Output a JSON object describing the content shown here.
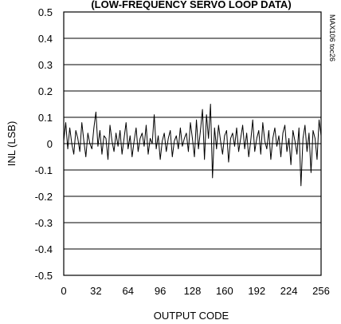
{
  "chart_data": {
    "type": "line",
    "title": "(LOW-FREQUENCY SERVO LOOP DATA)",
    "xlabel": "OUTPUT CODE",
    "ylabel": "INL (LSB)",
    "side_note": "MAX106 toc26",
    "xlim": [
      0,
      256
    ],
    "ylim": [
      -0.5,
      0.5
    ],
    "x_ticks": [
      0,
      32,
      64,
      96,
      128,
      160,
      192,
      224,
      256
    ],
    "y_ticks": [
      0.5,
      0.4,
      0.3,
      0.2,
      0.1,
      0,
      -0.1,
      -0.2,
      -0.3,
      -0.4,
      -0.5
    ],
    "x_tick_labels": [
      "0",
      "32",
      "64",
      "96",
      "128",
      "160",
      "192",
      "224",
      "256"
    ],
    "y_tick_labels": [
      "0.5",
      "0.4",
      "0.3",
      "0.2",
      "0.1",
      "0",
      "-0.1",
      "-0.2",
      "-0.3",
      "-0.4",
      "-0.5"
    ],
    "grid": true,
    "line_color": "#000000",
    "series": [
      {
        "x": [
          0,
          2,
          4,
          6,
          8,
          10,
          12,
          14,
          16,
          18,
          20,
          22,
          24,
          26,
          28,
          30,
          32,
          34,
          36,
          38,
          40,
          42,
          44,
          46,
          48,
          50,
          52,
          54,
          56,
          58,
          60,
          62,
          64,
          66,
          68,
          70,
          72,
          74,
          76,
          78,
          80,
          82,
          84,
          86,
          88,
          90,
          92,
          94,
          96,
          98,
          100,
          102,
          104,
          106,
          108,
          110,
          112,
          114,
          116,
          118,
          120,
          122,
          124,
          126,
          128,
          130,
          132,
          134,
          136,
          138,
          140,
          142,
          144,
          146,
          148,
          150,
          152,
          154,
          156,
          158,
          160,
          162,
          164,
          166,
          168,
          170,
          172,
          174,
          176,
          178,
          180,
          182,
          184,
          186,
          188,
          190,
          192,
          194,
          196,
          198,
          200,
          202,
          204,
          206,
          208,
          210,
          212,
          214,
          216,
          218,
          220,
          222,
          224,
          226,
          228,
          230,
          232,
          234,
          236,
          238,
          240,
          242,
          244,
          246,
          248,
          250,
          252,
          254,
          256
        ],
        "values": [
          0.01,
          0.08,
          -0.02,
          0.06,
          0.0,
          -0.04,
          0.05,
          0.02,
          -0.03,
          0.08,
          0.01,
          -0.05,
          0.04,
          0.0,
          -0.02,
          0.06,
          0.12,
          -0.01,
          0.05,
          -0.04,
          0.03,
          0.02,
          -0.06,
          0.07,
          0.01,
          -0.03,
          0.04,
          -0.01,
          0.05,
          -0.04,
          0.02,
          0.08,
          -0.02,
          0.03,
          -0.05,
          0.01,
          0.06,
          -0.03,
          0.02,
          0.04,
          -0.01,
          0.07,
          -0.04,
          0.02,
          0.0,
          0.11,
          -0.02,
          0.03,
          -0.06,
          0.01,
          0.04,
          -0.03,
          0.02,
          0.05,
          -0.05,
          0.01,
          0.03,
          -0.02,
          0.06,
          -0.01,
          0.02,
          0.04,
          -0.03,
          0.08,
          0.02,
          -0.05,
          0.09,
          -0.02,
          0.05,
          0.13,
          -0.06,
          0.11,
          0.02,
          0.15,
          -0.13,
          0.06,
          -0.02,
          0.07,
          0.01,
          -0.04,
          0.03,
          0.05,
          -0.07,
          0.02,
          0.04,
          -0.01,
          0.06,
          -0.03,
          0.02,
          0.07,
          -0.02,
          0.04,
          -0.05,
          0.01,
          0.09,
          -0.03,
          0.02,
          0.05,
          -0.04,
          0.08,
          0.01,
          -0.02,
          0.05,
          -0.06,
          0.02,
          0.06,
          -0.01,
          0.03,
          -0.05,
          0.04,
          0.07,
          -0.03,
          0.02,
          -0.08,
          0.05,
          0.01,
          -0.04,
          0.06,
          -0.16,
          0.02,
          0.07,
          -0.03,
          0.04,
          -0.11,
          0.05,
          0.02,
          -0.06,
          0.09,
          0.03
        ]
      }
    ]
  }
}
